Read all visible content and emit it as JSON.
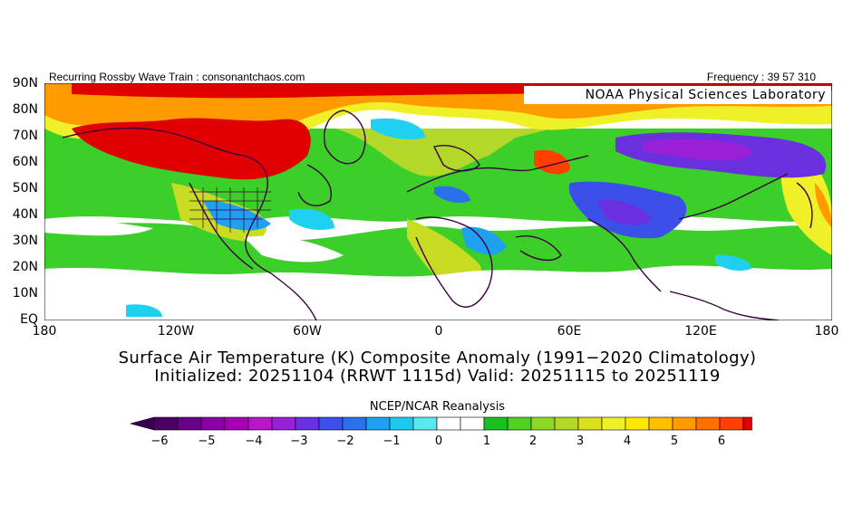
{
  "header": {
    "left_text": "Recurring Rossby Wave Train : consonantchaos.com",
    "right_text": "Frequency : 39 57 310",
    "noaa_label": "NOAA Physical Sciences Laboratory"
  },
  "axes": {
    "lat_labels": [
      "90N",
      "80N",
      "70N",
      "60N",
      "50N",
      "40N",
      "30N",
      "20N",
      "10N",
      "EQ"
    ],
    "lon_labels": [
      "180",
      "120W",
      "60W",
      "0",
      "60E",
      "120E",
      "180"
    ]
  },
  "titles": {
    "line1": "Surface Air Temperature (K) Composite Anomaly (1991−2020 Climatology)",
    "line2": "Initialized: 20251104 (RRWT 1115d) Valid: 20251115 to 20251119"
  },
  "colorbar": {
    "label": "NCEP/NCAR Reanalysis",
    "ticks": [
      "−6",
      "−5",
      "−4",
      "−3",
      "−2",
      "−1",
      "0",
      "1",
      "2",
      "3",
      "4",
      "5",
      "6"
    ],
    "colors": [
      "#4b0066",
      "#6a0085",
      "#8a00a6",
      "#a600b4",
      "#b615c8",
      "#9a20d8",
      "#6a30e0",
      "#3a50e8",
      "#2a70e8",
      "#1fa0f0",
      "#20c8f0",
      "#5ae8f0",
      "#ffffff",
      "#ffffff",
      "#18c020",
      "#50d020",
      "#8ed82a",
      "#b4d82a",
      "#d8e020",
      "#f0f028",
      "#ffe800",
      "#ffc000",
      "#ff9a00",
      "#ff7000",
      "#ff4000",
      "#e00000"
    ],
    "arrow_left": "#3a0050",
    "arrow_right": "#c00000"
  },
  "map": {
    "background_color": "#ffffff",
    "coast_color": "#3a0040"
  }
}
